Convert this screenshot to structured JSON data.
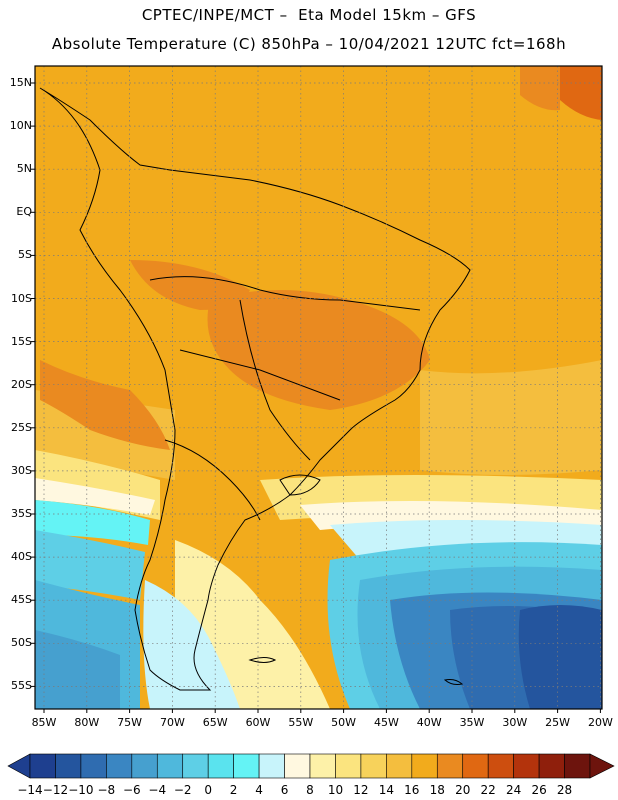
{
  "header": {
    "line1": "CPTEC/INPE/MCT –  Eta Model 15km – GFS",
    "line2": "Absolute Temperature (C) 850hPa – 10/04/2021 12UTC fct=168h"
  },
  "axes": {
    "lat_labels": [
      "15N",
      "10N",
      "5N",
      "EQ",
      "5S",
      "10S",
      "15S",
      "20S",
      "25S",
      "30S",
      "35S",
      "40S",
      "45S",
      "50S",
      "55S"
    ],
    "lon_labels": [
      "85W",
      "80W",
      "75W",
      "70W",
      "65W",
      "60W",
      "55W",
      "50W",
      "45W",
      "40W",
      "35W",
      "30W",
      "25W",
      "20W"
    ]
  },
  "colorbar": {
    "labels": [
      "−14",
      "−12",
      "−10",
      "−8",
      "−6",
      "−4",
      "−2",
      "0",
      "2",
      "4",
      "6",
      "8",
      "10",
      "12",
      "14",
      "16",
      "18",
      "20",
      "22",
      "24",
      "26",
      "28"
    ],
    "colors": [
      "#1e3f8f",
      "#24559e",
      "#2f6cb0",
      "#3a86c2",
      "#46a0cf",
      "#4fb8dc",
      "#5ecfe6",
      "#5ae3ee",
      "#64f3f5",
      "#c8f4fb",
      "#fff8e0",
      "#fdf1a8",
      "#fbe47f",
      "#f7d25b",
      "#f4be3e",
      "#f2ab1c",
      "#ea8a20",
      "#e06812",
      "#cd4e0f",
      "#b3330c",
      "#8f1f0c",
      "#6d140d"
    ]
  }
}
